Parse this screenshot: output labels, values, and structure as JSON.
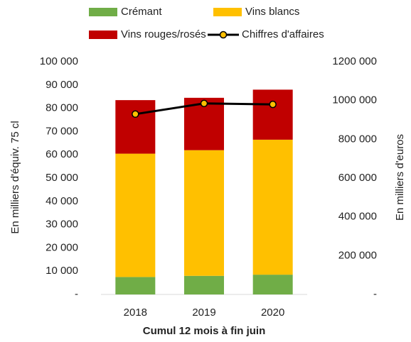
{
  "chart_data": {
    "type": "bar",
    "stacked": true,
    "x_label": "Cumul 12 mois à fin juin",
    "y_label": "En milliers d'équiv. 75 cl",
    "y2_label": "En milliers d'euros",
    "categories": [
      "2018",
      "2019",
      "2020"
    ],
    "series": [
      {
        "name": "Crémant",
        "color": "#70ad47",
        "type": "bar",
        "values": [
          7500,
          8000,
          8500
        ]
      },
      {
        "name": "Vins blancs",
        "color": "#ffc000",
        "type": "bar",
        "values": [
          53000,
          54000,
          58000
        ]
      },
      {
        "name": "Vins rouges/rosés",
        "color": "#c00000",
        "type": "bar",
        "values": [
          23000,
          22500,
          21500
        ]
      },
      {
        "name": "Chiffres d'affaires",
        "color": "#000000",
        "marker_color": "#ffc000",
        "type": "line",
        "axis": "y2",
        "values": [
          930000,
          985000,
          980000
        ]
      }
    ],
    "ylim": [
      0,
      100000
    ],
    "yticks": [
      {
        "value": 0,
        "label": "-"
      },
      {
        "value": 10000,
        "label": "10 000"
      },
      {
        "value": 20000,
        "label": "20 000"
      },
      {
        "value": 30000,
        "label": "30 000"
      },
      {
        "value": 40000,
        "label": "40 000"
      },
      {
        "value": 50000,
        "label": "50 000"
      },
      {
        "value": 60000,
        "label": "60 000"
      },
      {
        "value": 70000,
        "label": "70 000"
      },
      {
        "value": 80000,
        "label": "80 000"
      },
      {
        "value": 90000,
        "label": "90 000"
      },
      {
        "value": 100000,
        "label": "100 000"
      }
    ],
    "y2lim": [
      0,
      1200000
    ],
    "y2ticks": [
      {
        "value": 0,
        "label": "-"
      },
      {
        "value": 200000,
        "label": "200 000"
      },
      {
        "value": 400000,
        "label": "400 000"
      },
      {
        "value": 600000,
        "label": "600 000"
      },
      {
        "value": 800000,
        "label": "800 000"
      },
      {
        "value": 1000000,
        "label": "1000 000"
      },
      {
        "value": 1200000,
        "label": "1200 000"
      }
    ],
    "grid": false
  }
}
